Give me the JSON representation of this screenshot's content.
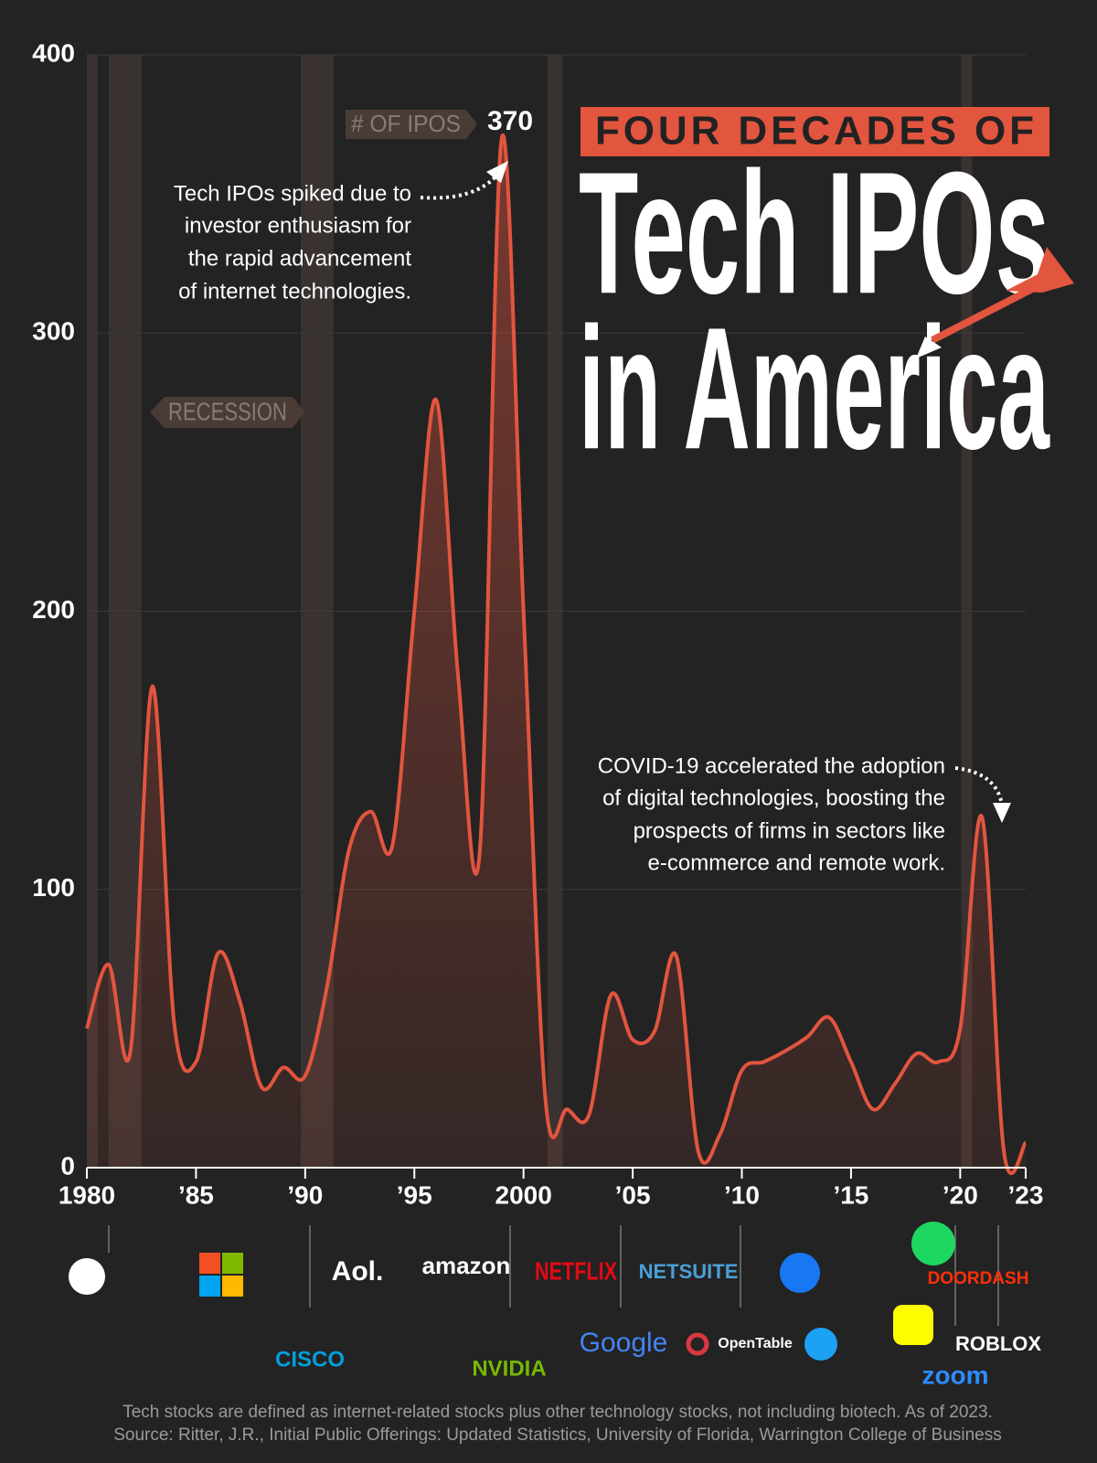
{
  "chart_data": {
    "type": "area-line",
    "kicker": "FOUR DECADES OF",
    "title_line1": "Tech IPOs",
    "title_line2": "in America",
    "series_label": "# OF IPOS",
    "recession_label": "RECESSION",
    "annotations": [
      [
        "Tech IPOs spiked due to",
        "investor enthusiasm for",
        "the rapid advancement",
        "of internet technologies."
      ],
      [
        "COVID-19 accelerated the adoption",
        "of digital technologies, boosting the",
        "prospects of firms in sectors like",
        "e-commerce and remote work."
      ]
    ],
    "x": [
      1980,
      1981,
      1982,
      1983,
      1984,
      1985,
      1986,
      1987,
      1988,
      1989,
      1990,
      1991,
      1992,
      1993,
      1994,
      1995,
      1996,
      1997,
      1998,
      1999,
      2000,
      2001,
      2002,
      2003,
      2004,
      2005,
      2006,
      2007,
      2008,
      2009,
      2010,
      2011,
      2012,
      2013,
      2014,
      2015,
      2016,
      2017,
      2018,
      2019,
      2020,
      2021,
      2022,
      2023
    ],
    "values": [
      50,
      73,
      42,
      173,
      52,
      38,
      77,
      60,
      29,
      36,
      33,
      65,
      114,
      128,
      116,
      200,
      276,
      177,
      114,
      370,
      200,
      25,
      21,
      19,
      62,
      46,
      49,
      76,
      6,
      12,
      35,
      38,
      42,
      47,
      54,
      38,
      21,
      30,
      41,
      38,
      50,
      126,
      6,
      9
    ],
    "color": "#e2553f",
    "recessions": [
      [
        1980.0,
        1980.5
      ],
      [
        1981.0,
        1982.5
      ],
      [
        1989.8,
        1991.3
      ],
      [
        2001.1,
        2001.8
      ],
      [
        2020.05,
        2020.55
      ]
    ],
    "xlim": [
      1980,
      2023
    ],
    "xticks": [
      1980,
      {
        "value": 1985,
        "label": "’85"
      },
      {
        "value": 1990,
        "label": "’90"
      },
      {
        "value": 1995,
        "label": "’95"
      },
      2000,
      {
        "value": 2005,
        "label": "’05"
      },
      {
        "value": 2010,
        "label": "’10"
      },
      {
        "value": 2015,
        "label": "’15"
      },
      {
        "value": 2020,
        "label": "’20"
      },
      {
        "value": 2023,
        "label": "’23"
      }
    ],
    "ylim": [
      0,
      400
    ],
    "yticks": [
      0,
      100,
      200,
      300,
      400
    ],
    "grid": true
  },
  "logos": [
    "Aol.",
    "amazon",
    "NETFLIX",
    "NETSUITE",
    "DOORDASH",
    "CISCO",
    "NVIDIA",
    "Google",
    "OpenTable",
    "ROBLOX",
    "zoom"
  ],
  "footer": [
    "Tech stocks are defined as internet-related stocks plus other technology stocks, not including biotech. As of 2023.",
    "Source: Ritter, J.R., Initial Public Offerings: Updated Statistics, University of Florida, Warrington College of Business"
  ]
}
